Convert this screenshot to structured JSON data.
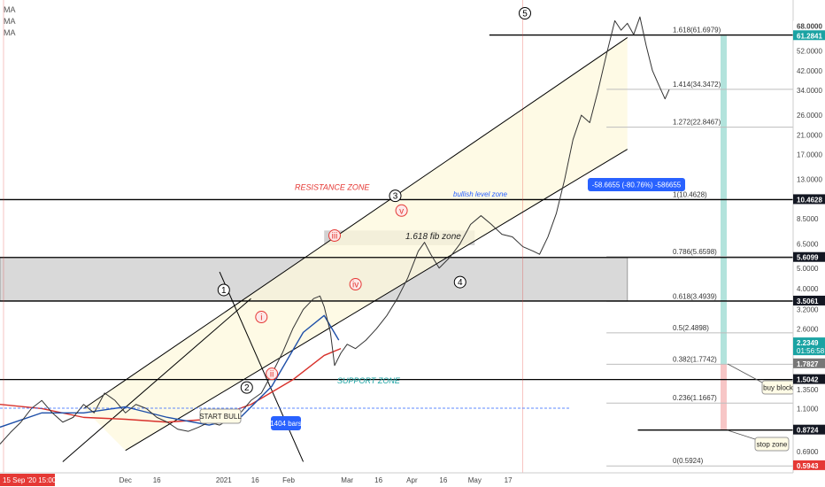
{
  "legend": {
    "indicators": [
      "MA",
      "MA",
      "MA"
    ]
  },
  "colors": {
    "price": "#333333",
    "ma_blue": "#1e4fa8",
    "ma_red": "#d8312b",
    "channel": "#000000",
    "fill_yellow": "#fdf8dc",
    "fill_gray": "#cccccc",
    "resistance": "#e53935",
    "support": "#1aa3a3",
    "tag_blue": "#2962ff",
    "red_price": "#e53935",
    "label_dark": "#131722",
    "teal_bar": "#b2e3dc",
    "pink_bar": "#f7c6c6"
  },
  "chart_data": {
    "type": "line",
    "y_scale": "log",
    "ylim": [
      0.55,
      90
    ],
    "y_ticks": [
      {
        "value": 68.0,
        "label": "68.0000"
      },
      {
        "value": 52.0,
        "label": "52.0000"
      },
      {
        "value": 42.0,
        "label": "42.0000"
      },
      {
        "value": 34.0,
        "label": "34.0000"
      },
      {
        "value": 26.0,
        "label": "26.0000"
      },
      {
        "value": 21.0,
        "label": "21.0000"
      },
      {
        "value": 17.0,
        "label": "17.0000"
      },
      {
        "value": 13.0,
        "label": "13.0000"
      },
      {
        "value": 8.5,
        "label": "8.5000"
      },
      {
        "value": 6.5,
        "label": "6.5000"
      },
      {
        "value": 5.0,
        "label": "5.0000"
      },
      {
        "value": 4.0,
        "label": "4.0000"
      },
      {
        "value": 3.2,
        "label": "3.2000"
      },
      {
        "value": 2.6,
        "label": "2.6000"
      },
      {
        "value": 1.35,
        "label": "1.3500"
      },
      {
        "value": 1.1,
        "label": "1.1000"
      },
      {
        "value": 0.69,
        "label": "0.6900"
      }
    ],
    "x_ticks": [
      {
        "value": 0,
        "label": "15 Sep '20  15:00",
        "highlight": true
      },
      {
        "value": 60,
        "label": "Dec"
      },
      {
        "value": 75,
        "label": "16"
      },
      {
        "value": 107,
        "label": "2021"
      },
      {
        "value": 122,
        "label": "16"
      },
      {
        "value": 138,
        "label": "Feb"
      },
      {
        "value": 166,
        "label": "Mar"
      },
      {
        "value": 181,
        "label": "16"
      },
      {
        "value": 197,
        "label": "Apr"
      },
      {
        "value": 212,
        "label": "16"
      },
      {
        "value": 227,
        "label": "May"
      },
      {
        "value": 243,
        "label": "17"
      }
    ],
    "xlim": [
      0,
      320
    ],
    "price_series": [
      {
        "x": 0,
        "y": 0.75
      },
      {
        "x": 5,
        "y": 0.85
      },
      {
        "x": 10,
        "y": 0.95
      },
      {
        "x": 15,
        "y": 1.1
      },
      {
        "x": 20,
        "y": 1.2
      },
      {
        "x": 25,
        "y": 1.05
      },
      {
        "x": 30,
        "y": 0.95
      },
      {
        "x": 35,
        "y": 1.0
      },
      {
        "x": 40,
        "y": 1.15
      },
      {
        "x": 45,
        "y": 1.05
      },
      {
        "x": 50,
        "y": 1.3
      },
      {
        "x": 55,
        "y": 1.2
      },
      {
        "x": 60,
        "y": 1.05
      },
      {
        "x": 65,
        "y": 1.15
      },
      {
        "x": 70,
        "y": 1.1
      },
      {
        "x": 75,
        "y": 1.0
      },
      {
        "x": 80,
        "y": 0.95
      },
      {
        "x": 85,
        "y": 0.88
      },
      {
        "x": 90,
        "y": 0.86
      },
      {
        "x": 95,
        "y": 0.9
      },
      {
        "x": 100,
        "y": 0.95
      },
      {
        "x": 105,
        "y": 0.92
      },
      {
        "x": 110,
        "y": 0.98
      },
      {
        "x": 115,
        "y": 1.05
      },
      {
        "x": 120,
        "y": 1.2
      },
      {
        "x": 125,
        "y": 1.3
      },
      {
        "x": 130,
        "y": 1.6
      },
      {
        "x": 135,
        "y": 2.0
      },
      {
        "x": 140,
        "y": 2.6
      },
      {
        "x": 145,
        "y": 3.2
      },
      {
        "x": 150,
        "y": 3.6
      },
      {
        "x": 153,
        "y": 3.7
      },
      {
        "x": 155,
        "y": 3.3
      },
      {
        "x": 158,
        "y": 2.5
      },
      {
        "x": 160,
        "y": 1.75
      },
      {
        "x": 163,
        "y": 2.0
      },
      {
        "x": 166,
        "y": 2.2
      },
      {
        "x": 170,
        "y": 2.1
      },
      {
        "x": 175,
        "y": 2.3
      },
      {
        "x": 180,
        "y": 2.6
      },
      {
        "x": 185,
        "y": 3.0
      },
      {
        "x": 190,
        "y": 3.6
      },
      {
        "x": 195,
        "y": 4.5
      },
      {
        "x": 200,
        "y": 6.0
      },
      {
        "x": 203,
        "y": 6.6
      },
      {
        "x": 206,
        "y": 5.8
      },
      {
        "x": 210,
        "y": 5.0
      },
      {
        "x": 215,
        "y": 5.6
      },
      {
        "x": 220,
        "y": 6.5
      },
      {
        "x": 225,
        "y": 8.0
      },
      {
        "x": 230,
        "y": 8.8
      },
      {
        "x": 235,
        "y": 8.0
      },
      {
        "x": 240,
        "y": 7.2
      },
      {
        "x": 245,
        "y": 7.0
      },
      {
        "x": 250,
        "y": 6.3
      },
      {
        "x": 255,
        "y": 6.0
      },
      {
        "x": 258,
        "y": 5.8
      },
      {
        "x": 262,
        "y": 7.0
      },
      {
        "x": 266,
        "y": 9.0
      },
      {
        "x": 270,
        "y": 13.0
      },
      {
        "x": 274,
        "y": 20.0
      },
      {
        "x": 278,
        "y": 26.0
      },
      {
        "x": 282,
        "y": 24.0
      },
      {
        "x": 286,
        "y": 34.0
      },
      {
        "x": 290,
        "y": 50.0
      },
      {
        "x": 294,
        "y": 72.0
      },
      {
        "x": 297,
        "y": 65.0
      },
      {
        "x": 300,
        "y": 70.0
      },
      {
        "x": 303,
        "y": 62.0
      },
      {
        "x": 306,
        "y": 75.0
      },
      {
        "x": 309,
        "y": 55.0
      },
      {
        "x": 312,
        "y": 42.0
      },
      {
        "x": 315,
        "y": 36.0
      },
      {
        "x": 318,
        "y": 31.0
      },
      {
        "x": 320,
        "y": 34.3
      }
    ],
    "ma_blue": [
      {
        "x": 0,
        "y": 0.9
      },
      {
        "x": 20,
        "y": 1.05
      },
      {
        "x": 40,
        "y": 1.05
      },
      {
        "x": 60,
        "y": 1.12
      },
      {
        "x": 80,
        "y": 1.0
      },
      {
        "x": 100,
        "y": 0.92
      },
      {
        "x": 115,
        "y": 1.0
      },
      {
        "x": 130,
        "y": 1.4
      },
      {
        "x": 145,
        "y": 2.5
      },
      {
        "x": 155,
        "y": 3.0
      },
      {
        "x": 162,
        "y": 2.3
      }
    ],
    "ma_red": [
      {
        "x": 0,
        "y": 1.15
      },
      {
        "x": 20,
        "y": 1.1
      },
      {
        "x": 40,
        "y": 1.0
      },
      {
        "x": 60,
        "y": 0.98
      },
      {
        "x": 80,
        "y": 0.95
      },
      {
        "x": 100,
        "y": 0.98
      },
      {
        "x": 120,
        "y": 1.15
      },
      {
        "x": 140,
        "y": 1.5
      },
      {
        "x": 155,
        "y": 1.95
      },
      {
        "x": 163,
        "y": 2.1
      }
    ],
    "fib_levels": [
      {
        "label": "1.618(61.6979)",
        "value": 61.6979
      },
      {
        "label": "1.414(34.3472)",
        "value": 34.3472
      },
      {
        "label": "1.272(22.8467)",
        "value": 22.8467
      },
      {
        "label": "1(10.4628)",
        "value": 10.4628
      },
      {
        "label": "0.786(5.6598)",
        "value": 5.6598
      },
      {
        "label": "0.618(3.4939)",
        "value": 3.4939
      },
      {
        "label": "0.5(2.4898)",
        "value": 2.4898
      },
      {
        "label": "0.382(1.7742)",
        "value": 1.7742
      },
      {
        "label": "0.236(1.1667)",
        "value": 1.1667
      },
      {
        "label": "0(0.5924)",
        "value": 0.5924
      }
    ],
    "horizontal_lines": [
      {
        "value": 61.6979,
        "x_from": 234
      },
      {
        "value": 10.4628,
        "x_from": 0
      },
      {
        "value": 5.6099,
        "x_from": 0
      },
      {
        "value": 3.5061,
        "x_from": 0
      },
      {
        "value": 1.5042,
        "x_from": 0
      },
      {
        "value": 0.8724,
        "x_from": 305
      }
    ],
    "price_tags": [
      {
        "value": 68.0,
        "label": "68.0000",
        "kind": "plain"
      },
      {
        "value": 61.2841,
        "label": "61.2841",
        "kind": "teal"
      },
      {
        "value": 10.4628,
        "label": "10.4628",
        "kind": "dark"
      },
      {
        "value": 5.6099,
        "label": "5.6099",
        "kind": "dark"
      },
      {
        "value": 3.5061,
        "label": "3.5061",
        "kind": "dark"
      },
      {
        "value": 2.2349,
        "label": "2.2349",
        "kind": "teal",
        "sub": "01:56:58"
      },
      {
        "value": 1.7827,
        "label": "1.7827",
        "kind": "gray"
      },
      {
        "value": 1.5042,
        "label": "1.5042",
        "kind": "dark"
      },
      {
        "value": 0.8724,
        "label": "0.8724",
        "kind": "dark"
      },
      {
        "value": 0.5943,
        "label": "0.5943",
        "kind": "red"
      }
    ],
    "zones": [
      {
        "name": "gray-zone",
        "y_from": 3.5,
        "y_to": 5.6,
        "x_from": 0,
        "x_to": 300
      },
      {
        "name": "fib-zone",
        "y_from": 6.4,
        "y_to": 7.5,
        "x_from": 155,
        "x_to": 227
      }
    ],
    "wave_labels": [
      {
        "text": "1",
        "x": 107,
        "y": 3.95,
        "style": "black"
      },
      {
        "text": "2",
        "x": 118,
        "y": 1.38,
        "style": "black"
      },
      {
        "text": "3",
        "x": 189,
        "y": 10.9,
        "style": "black"
      },
      {
        "text": "4",
        "x": 220,
        "y": 4.3,
        "style": "black"
      },
      {
        "text": "5",
        "x": 251,
        "y": 78,
        "style": "black"
      },
      {
        "text": "i",
        "x": 125,
        "y": 2.95,
        "style": "red"
      },
      {
        "text": "ii",
        "x": 130,
        "y": 1.6,
        "style": "red"
      },
      {
        "text": "iii",
        "x": 160,
        "y": 7.1,
        "style": "red"
      },
      {
        "text": "iv",
        "x": 170,
        "y": 4.2,
        "style": "red"
      },
      {
        "text": "v",
        "x": 192,
        "y": 9.3,
        "style": "red"
      }
    ],
    "annotations": {
      "resistance": "RESISTANCE ZONE",
      "support": "SUPPORT  ZONE",
      "bullish": "bullish level zone",
      "fib_zone": "1.618 fib zone",
      "start_bull": "START BULL",
      "bars": "1404 bars",
      "measure": "-58.6655 (-80.76%) -586655",
      "buy_block": "buy block",
      "stop_zone": "stop zone"
    }
  }
}
